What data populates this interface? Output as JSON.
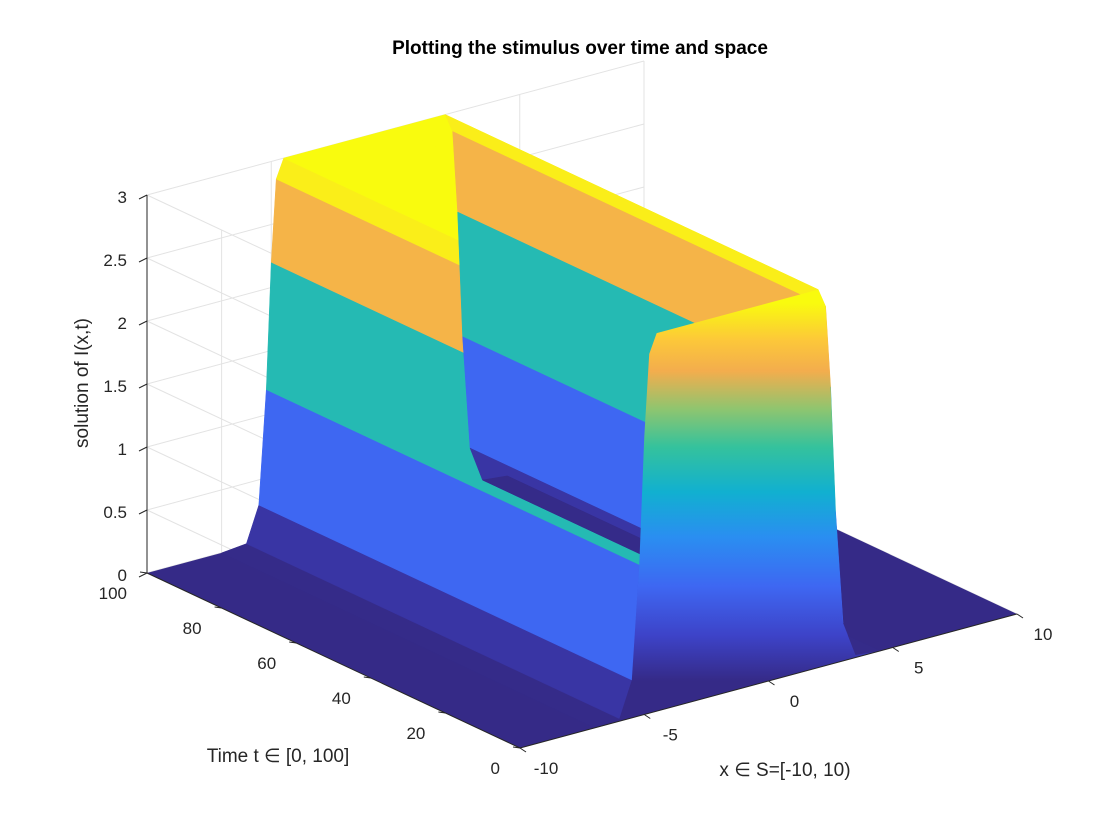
{
  "chart_data": {
    "type": "surface",
    "title": "Plotting the stimulus over time and space",
    "xlabel": "x ∈ S=[-10, 10)",
    "ylabel": "Time t ∈ [0, 100]",
    "zlabel": "solution of I(x,t)",
    "xlim": [
      -10,
      10
    ],
    "ylim": [
      0,
      100
    ],
    "zlim": [
      0,
      3
    ],
    "x_ticks": [
      "-10",
      "-5",
      "0",
      "5",
      "10"
    ],
    "y_ticks": [
      "0",
      "20",
      "40",
      "60",
      "80",
      "100"
    ],
    "z_ticks": [
      "0",
      "0.5",
      "1",
      "1.5",
      "2",
      "2.5",
      "3"
    ],
    "grid": true,
    "colormap": "parula",
    "surface": {
      "description_profile": "plateau in x over roughly [-5, 2.5], height about 3, rising near x = -5 and falling near x = 2.5, constant along t with small periodic ripples",
      "x_profile": [
        [
          -10,
          0
        ],
        [
          -7,
          0
        ],
        [
          -6,
          0.02
        ],
        [
          -5.5,
          0.3
        ],
        [
          -5.2,
          1.2
        ],
        [
          -5,
          2.2
        ],
        [
          -4.8,
          2.85
        ],
        [
          -4.5,
          3.0
        ],
        [
          0,
          3.0
        ],
        [
          2.0,
          3.0
        ],
        [
          2.3,
          2.85
        ],
        [
          2.5,
          2.2
        ],
        [
          2.7,
          1.2
        ],
        [
          3.0,
          0.3
        ],
        [
          3.5,
          0.02
        ],
        [
          4.5,
          0
        ],
        [
          10,
          0
        ]
      ],
      "t_range": [
        0,
        100
      ],
      "plateau_height": 3.0
    }
  },
  "colors": {
    "background": "#ffffff",
    "grid": "#e3e3e3",
    "axis": "#262626",
    "colormap_stops": [
      "#352a87",
      "#0f5cdd",
      "#1481d6",
      "#06a4ca",
      "#2eb7a4",
      "#87bf77",
      "#d1bb59",
      "#fec832",
      "#f9fb0e"
    ]
  }
}
